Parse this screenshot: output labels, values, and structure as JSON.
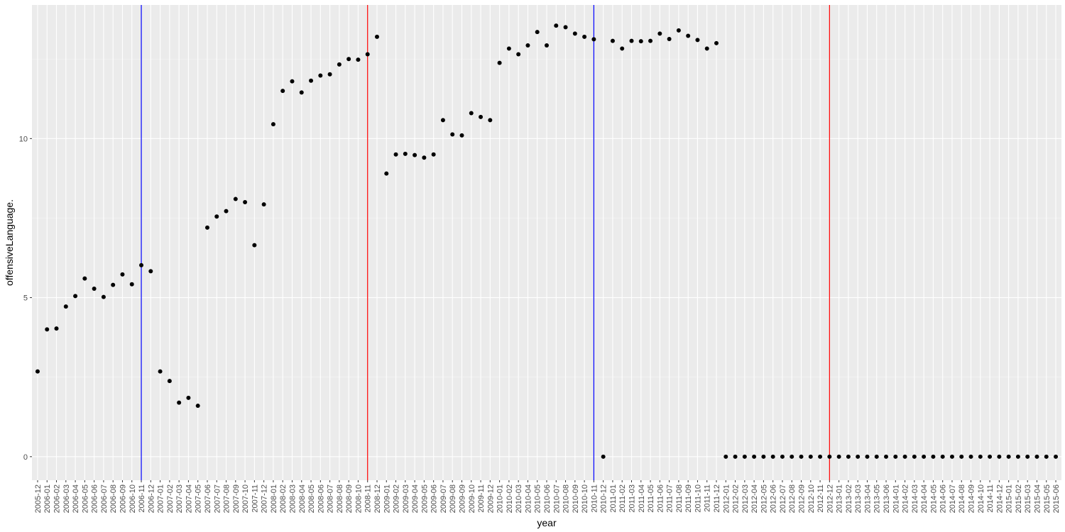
{
  "chart_data": {
    "type": "scatter",
    "x_label": "year",
    "y_label": "offensiveLanguage.",
    "categories": [
      "2005-12",
      "2006-01",
      "2006-02",
      "2006-03",
      "2006-04",
      "2006-05",
      "2006-06",
      "2006-07",
      "2006-08",
      "2006-09",
      "2006-10",
      "2006-11",
      "2006-12",
      "2007-01",
      "2007-02",
      "2007-03",
      "2007-04",
      "2007-05",
      "2007-06",
      "2007-07",
      "2007-08",
      "2007-09",
      "2007-10",
      "2007-11",
      "2007-12",
      "2008-01",
      "2008-02",
      "2008-03",
      "2008-04",
      "2008-05",
      "2008-06",
      "2008-07",
      "2008-08",
      "2008-09",
      "2008-10",
      "2008-11",
      "2008-12",
      "2009-01",
      "2009-02",
      "2009-03",
      "2009-04",
      "2009-05",
      "2009-06",
      "2009-07",
      "2009-08",
      "2009-09",
      "2009-10",
      "2009-11",
      "2009-12",
      "2010-01",
      "2010-02",
      "2010-03",
      "2010-04",
      "2010-05",
      "2010-06",
      "2010-07",
      "2010-08",
      "2010-09",
      "2010-10",
      "2010-11",
      "2010-12",
      "2011-01",
      "2011-02",
      "2011-03",
      "2011-04",
      "2011-05",
      "2011-06",
      "2011-07",
      "2011-08",
      "2011-09",
      "2011-10",
      "2011-11",
      "2011-12",
      "2012-01",
      "2012-02",
      "2012-03",
      "2012-04",
      "2012-05",
      "2012-06",
      "2012-07",
      "2012-08",
      "2012-09",
      "2012-10",
      "2012-11",
      "2012-12",
      "2013-01",
      "2013-02",
      "2013-03",
      "2013-04",
      "2013-05",
      "2013-06",
      "2014-01",
      "2014-02",
      "2014-03",
      "2014-04",
      "2014-05",
      "2014-06",
      "2014-07",
      "2014-08",
      "2014-09",
      "2014-10",
      "2014-11",
      "2014-12",
      "2015-01",
      "2015-02",
      "2015-03",
      "2015-04",
      "2015-05",
      "2015-06"
    ],
    "values": [
      2.68,
      4.0,
      4.03,
      4.72,
      5.05,
      5.6,
      5.28,
      5.02,
      5.4,
      5.73,
      5.42,
      6.02,
      5.83,
      2.68,
      2.38,
      1.7,
      1.85,
      1.6,
      7.2,
      7.55,
      7.72,
      8.1,
      8.0,
      6.65,
      7.93,
      10.45,
      11.5,
      11.8,
      11.45,
      11.82,
      11.98,
      12.02,
      12.33,
      12.5,
      12.48,
      12.65,
      13.2,
      8.9,
      9.5,
      9.52,
      9.48,
      9.4,
      9.5,
      10.58,
      10.13,
      10.1,
      10.8,
      10.68,
      10.58,
      12.38,
      12.83,
      12.65,
      12.93,
      13.35,
      12.93,
      13.55,
      13.5,
      13.3,
      13.2,
      13.12,
      0,
      13.07,
      12.83,
      13.07,
      13.06,
      13.07,
      13.3,
      13.13,
      13.4,
      13.23,
      13.1,
      12.83,
      13.0,
      0,
      0,
      0,
      0,
      0,
      0,
      0,
      0,
      0,
      0,
      0,
      0,
      0,
      0,
      0,
      0,
      0,
      0,
      0,
      0,
      0,
      0,
      0,
      0,
      0,
      0,
      0,
      0,
      0,
      0,
      0,
      0,
      0,
      0,
      0,
      0
    ],
    "color": "#000000",
    "ylim": [
      -0.74,
      14.2
    ],
    "yticks": [
      0,
      5,
      10
    ],
    "grid": true,
    "vlines": [
      {
        "x": "2006-11",
        "color": "#0000ff"
      },
      {
        "x": "2008-11",
        "color": "#ff0000"
      },
      {
        "x": "2010-11",
        "color": "#0000ff"
      },
      {
        "x": "2012-12",
        "color": "#ff0000"
      }
    ]
  }
}
